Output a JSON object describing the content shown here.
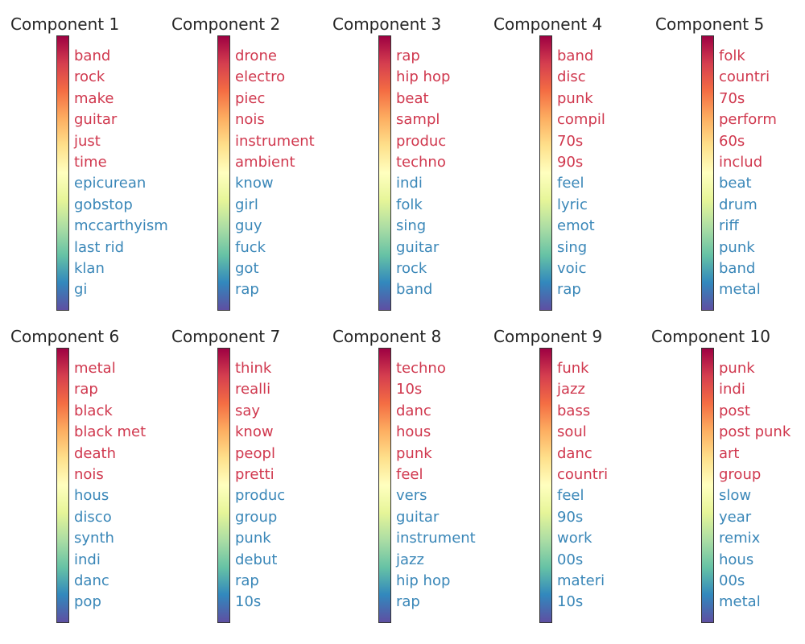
{
  "chart_data": {
    "type": "colorbar-term-list",
    "colormap": "Spectral",
    "colors": {
      "positive": "#d0384e",
      "negative": "#3a87b8"
    },
    "panels": [
      {
        "title": "Component 1",
        "positive": [
          "band",
          "rock",
          "make",
          "guitar",
          "just",
          "time"
        ],
        "negative": [
          "epicurean",
          "gobstop",
          "mccarthyism",
          "last rid",
          "klan",
          "gi"
        ]
      },
      {
        "title": "Component 2",
        "positive": [
          "drone",
          "electro",
          "piec",
          "nois",
          "instrument",
          "ambient"
        ],
        "negative": [
          "know",
          "girl",
          "guy",
          "fuck",
          "got",
          "rap"
        ]
      },
      {
        "title": "Component 3",
        "positive": [
          "rap",
          "hip hop",
          "beat",
          "sampl",
          "produc",
          "techno"
        ],
        "negative": [
          "indi",
          "folk",
          "sing",
          "guitar",
          "rock",
          "band"
        ]
      },
      {
        "title": "Component 4",
        "positive": [
          "band",
          "disc",
          "punk",
          "compil",
          "70s",
          "90s"
        ],
        "negative": [
          "feel",
          "lyric",
          "emot",
          "sing",
          "voic",
          "rap"
        ]
      },
      {
        "title": "Component 5",
        "positive": [
          "folk",
          "countri",
          "70s",
          "perform",
          "60s",
          "includ"
        ],
        "negative": [
          "beat",
          "drum",
          "riff",
          "punk",
          "band",
          "metal"
        ]
      },
      {
        "title": "Component 6",
        "positive": [
          "metal",
          "rap",
          "black",
          "black met",
          "death",
          "nois"
        ],
        "negative": [
          "hous",
          "disco",
          "synth",
          "indi",
          "danc",
          "pop"
        ]
      },
      {
        "title": "Component 7",
        "positive": [
          "think",
          "realli",
          "say",
          "know",
          "peopl",
          "pretti"
        ],
        "negative": [
          "produc",
          "group",
          "punk",
          "debut",
          "rap",
          "10s"
        ]
      },
      {
        "title": "Component 8",
        "positive": [
          "techno",
          "10s",
          "danc",
          "hous",
          "punk",
          "feel"
        ],
        "negative": [
          "vers",
          "guitar",
          "instrument",
          "jazz",
          "hip hop",
          "rap"
        ]
      },
      {
        "title": "Component 9",
        "positive": [
          "funk",
          "jazz",
          "bass",
          "soul",
          "danc",
          "countri"
        ],
        "negative": [
          "feel",
          "90s",
          "work",
          "00s",
          "materi",
          "10s"
        ]
      },
      {
        "title": "Component 10",
        "positive": [
          "punk",
          "indi",
          "post",
          "post punk",
          "art",
          "group"
        ],
        "negative": [
          "slow",
          "year",
          "remix",
          "hous",
          "00s",
          "metal"
        ]
      }
    ]
  }
}
